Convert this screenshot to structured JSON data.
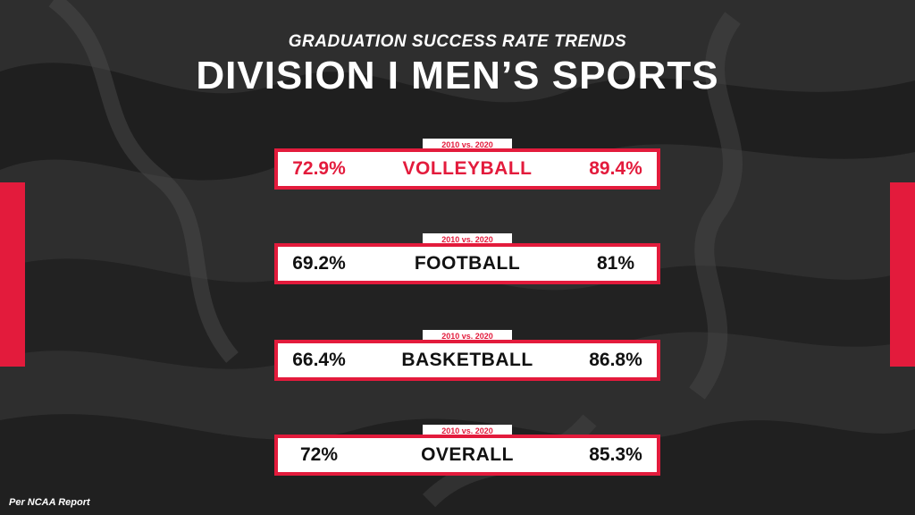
{
  "header": {
    "subtitle": "GRADUATION SUCCESS RATE TRENDS",
    "title": "DIVISION I MEN’S SPORTS"
  },
  "rows": [
    {
      "tag": "2010 vs. 2020",
      "sport": "VOLLEYBALL",
      "value_2010": "72.9%",
      "value_2020": "89.4%",
      "highlight": true
    },
    {
      "tag": "2010 vs. 2020",
      "sport": "FOOTBALL",
      "value_2010": "69.2%",
      "value_2020": "81%",
      "highlight": false
    },
    {
      "tag": "2010 vs. 2020",
      "sport": "BASKETBALL",
      "value_2010": "66.4%",
      "value_2020": "86.8%",
      "highlight": false
    },
    {
      "tag": "2010 vs. 2020",
      "sport": "OVERALL",
      "value_2010": "72%",
      "value_2020": "85.3%",
      "highlight": false
    }
  ],
  "footer": {
    "source": "Per NCAA Report"
  },
  "colors": {
    "accent": "#e31b3c",
    "background": "#2f2f2f",
    "text": "#111111",
    "panel": "#ffffff"
  }
}
